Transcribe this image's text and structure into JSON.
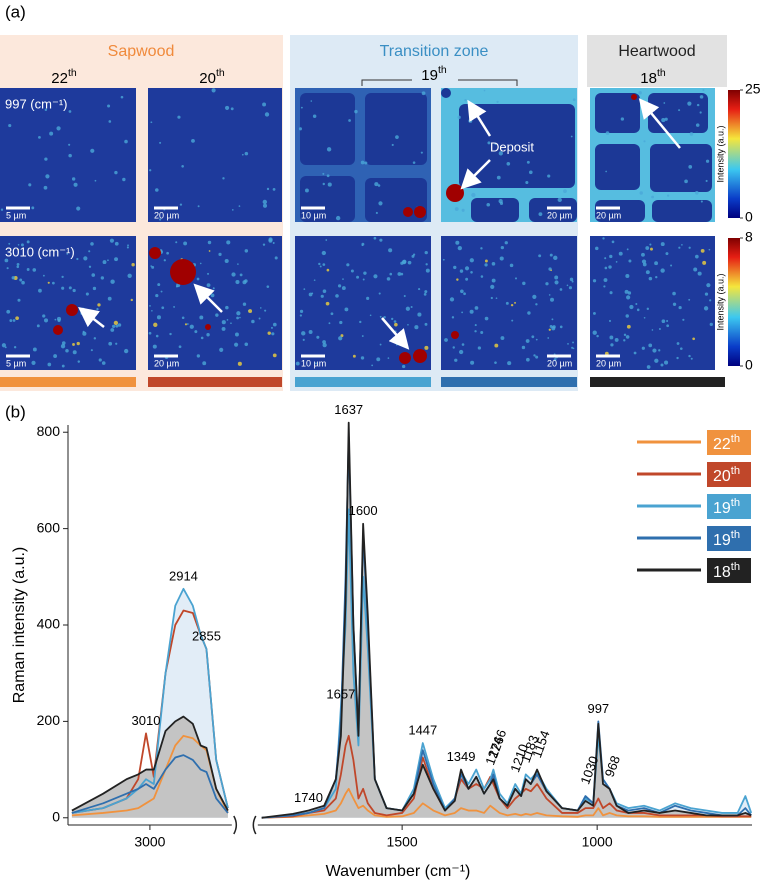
{
  "panel_a": {
    "label": "(a)",
    "zones": [
      "Sapwood",
      "Transition zone",
      "Heartwood"
    ],
    "column_labels": [
      "22th",
      "20th",
      "19th",
      "18th"
    ],
    "row_labels": [
      "997 (cm⁻¹)",
      "3010 (cm⁻¹)"
    ],
    "scale_bars": [
      "5 µm",
      "20 µm",
      "10 µm",
      "20 µm",
      "20 µm"
    ],
    "annotation": "Deposit",
    "colorbars": [
      {
        "label": "Intensity (a.u.)",
        "ticks": [
          0,
          25
        ]
      },
      {
        "label": "Intensity (a.u.)",
        "ticks": [
          0,
          8
        ]
      }
    ]
  },
  "chart_data": {
    "type": "line",
    "panel_label": "(b)",
    "x_label": "Wavenumber (cm⁻¹)",
    "y_label": "Raman intensity (a.u.)",
    "xlim": [
      3210,
      603
    ],
    "x_break": [
      2790,
      1870
    ],
    "ylim": [
      -15,
      815
    ],
    "xticks": [
      3000,
      1500,
      1000
    ],
    "yticks": [
      0,
      200,
      400,
      600,
      800
    ],
    "legend": "upper right",
    "x": [
      3200,
      3120,
      3060,
      3030,
      3010,
      2990,
      2960,
      2935,
      2914,
      2890,
      2870,
      2855,
      2830,
      2800,
      1860,
      1780,
      1740,
      1700,
      1670,
      1657,
      1645,
      1637,
      1625,
      1612,
      1600,
      1588,
      1570,
      1540,
      1500,
      1470,
      1447,
      1420,
      1390,
      1365,
      1349,
      1330,
      1310,
      1290,
      1274,
      1266,
      1250,
      1230,
      1210,
      1195,
      1183,
      1170,
      1154,
      1130,
      1090,
      1050,
      1030,
      1010,
      997,
      985,
      968,
      950,
      920,
      880,
      840,
      800,
      760,
      720,
      680,
      640,
      620,
      605
    ],
    "series": [
      {
        "name": "22th",
        "color": "#f0923e",
        "values": [
          5,
          10,
          15,
          20,
          30,
          40,
          100,
          150,
          170,
          165,
          150,
          140,
          60,
          10,
          0,
          2,
          5,
          8,
          15,
          30,
          50,
          60,
          40,
          20,
          25,
          15,
          5,
          2,
          3,
          10,
          30,
          15,
          5,
          10,
          20,
          15,
          15,
          10,
          25,
          20,
          10,
          5,
          8,
          5,
          8,
          6,
          10,
          5,
          3,
          2,
          5,
          5,
          20,
          5,
          10,
          5,
          3,
          3,
          2,
          2,
          2,
          2,
          2,
          2,
          2,
          2
        ]
      },
      {
        "name": "20th",
        "color": "#c0472a",
        "values": [
          10,
          20,
          40,
          80,
          175,
          85,
          300,
          400,
          430,
          425,
          380,
          350,
          120,
          20,
          0,
          3,
          10,
          15,
          40,
          90,
          150,
          170,
          120,
          40,
          60,
          30,
          10,
          5,
          10,
          40,
          125,
          60,
          15,
          40,
          80,
          60,
          70,
          60,
          85,
          70,
          40,
          20,
          40,
          50,
          60,
          55,
          70,
          40,
          10,
          10,
          20,
          20,
          40,
          20,
          30,
          15,
          10,
          10,
          5,
          5,
          5,
          5,
          3,
          3,
          3,
          3
        ]
      },
      {
        "name": "19th",
        "color": "#4aa3d1",
        "fill": "#e2edf7",
        "values": [
          10,
          20,
          40,
          60,
          80,
          70,
          300,
          440,
          475,
          440,
          380,
          350,
          120,
          20,
          0,
          5,
          10,
          20,
          60,
          230,
          400,
          640,
          300,
          150,
          500,
          350,
          80,
          20,
          15,
          60,
          155,
          80,
          20,
          40,
          95,
          70,
          100,
          60,
          80,
          100,
          50,
          30,
          70,
          50,
          90,
          80,
          95,
          60,
          20,
          15,
          40,
          30,
          170,
          80,
          60,
          30,
          20,
          25,
          15,
          30,
          20,
          15,
          10,
          10,
          45,
          10
        ]
      },
      {
        "name": "19th",
        "color": "#2f6fae",
        "values": [
          10,
          30,
          50,
          60,
          70,
          60,
          100,
          125,
          130,
          120,
          100,
          95,
          40,
          10,
          0,
          5,
          10,
          20,
          80,
          200,
          500,
          790,
          400,
          180,
          590,
          400,
          80,
          20,
          15,
          50,
          140,
          70,
          15,
          40,
          90,
          60,
          85,
          50,
          70,
          90,
          40,
          25,
          60,
          45,
          80,
          70,
          90,
          55,
          20,
          15,
          45,
          30,
          200,
          80,
          60,
          25,
          15,
          20,
          10,
          25,
          15,
          10,
          5,
          5,
          20,
          5
        ]
      },
      {
        "name": "18th",
        "color": "#222222",
        "fill": "#c4c4c4",
        "values": [
          15,
          50,
          80,
          90,
          100,
          100,
          180,
          200,
          210,
          195,
          150,
          145,
          60,
          15,
          0,
          8,
          15,
          25,
          80,
          170,
          450,
          820,
          400,
          170,
          610,
          420,
          80,
          20,
          15,
          50,
          110,
          60,
          15,
          35,
          100,
          60,
          85,
          50,
          70,
          80,
          40,
          25,
          60,
          45,
          80,
          70,
          100,
          55,
          20,
          15,
          35,
          25,
          195,
          70,
          60,
          25,
          10,
          15,
          10,
          15,
          10,
          5,
          5,
          5,
          10,
          5
        ]
      }
    ],
    "peak_labels": [
      3010,
      2914,
      2855,
      1740,
      1657,
      1637,
      1600,
      1447,
      1349,
      1274,
      1266,
      1210,
      1183,
      1154,
      1030,
      997,
      968
    ]
  }
}
